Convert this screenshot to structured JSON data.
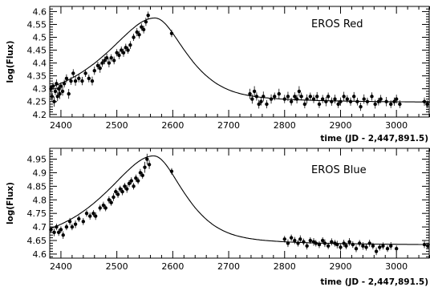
{
  "chart_data": [
    {
      "type": "scatter",
      "title": "EROS Red",
      "xlabel": "time (JD - 2,447,891.5)",
      "ylabel": "log(Flux)",
      "xlim": [
        2380,
        3060
      ],
      "ylim": [
        4.19,
        4.62
      ],
      "x_ticks": [
        2400,
        2500,
        2600,
        2700,
        2800,
        2900,
        3000
      ],
      "x_tick_labels": [
        "2400",
        "2500",
        "2600",
        "2700",
        "2800",
        "2900",
        "3000"
      ],
      "y_ticks": [
        4.2,
        4.25,
        4.3,
        4.35,
        4.4,
        4.45,
        4.5,
        4.55,
        4.6
      ],
      "y_tick_labels": [
        "4.2",
        "4.25",
        "4.3",
        "4.35",
        "4.4",
        "4.45",
        "4.5",
        "4.55",
        "4.6"
      ],
      "model_curve": {
        "peak_time": 2568,
        "peak_value": 4.575,
        "baseline": 4.245,
        "rise_scale": 95,
        "decay_scale": 62,
        "x_start": 2380,
        "x_end": 3060
      },
      "series": [
        {
          "x": [
            2382,
            2384,
            2386,
            2388,
            2390,
            2392,
            2394,
            2396,
            2398,
            2400,
            2403,
            2406,
            2410,
            2414,
            2418,
            2422,
            2426,
            2432,
            2438,
            2444,
            2450,
            2456,
            2460,
            2466,
            2470,
            2474,
            2478,
            2482,
            2486,
            2490,
            2495,
            2500,
            2504,
            2508,
            2512,
            2516,
            2520,
            2524,
            2530,
            2536,
            2540,
            2544,
            2548,
            2552,
            2556,
            2598,
            2738,
            2742,
            2746,
            2750,
            2754,
            2758,
            2762,
            2768,
            2776,
            2782,
            2790,
            2800,
            2806,
            2812,
            2818,
            2822,
            2826,
            2830,
            2836,
            2840,
            2846,
            2852,
            2858,
            2862,
            2868,
            2874,
            2878,
            2884,
            2890,
            2896,
            2900,
            2906,
            2912,
            2918,
            2924,
            2930,
            2936,
            2942,
            2948,
            2956,
            2962,
            2968,
            2972,
            2982,
            2990,
            2996,
            3000,
            3006,
            3050,
            3055
          ],
          "y": [
            4.3,
            4.27,
            4.31,
            4.25,
            4.29,
            4.32,
            4.27,
            4.3,
            4.28,
            4.31,
            4.29,
            4.32,
            4.34,
            4.28,
            4.33,
            4.36,
            4.33,
            4.34,
            4.33,
            4.36,
            4.34,
            4.33,
            4.37,
            4.39,
            4.38,
            4.4,
            4.41,
            4.42,
            4.4,
            4.42,
            4.41,
            4.44,
            4.43,
            4.45,
            4.44,
            4.46,
            4.45,
            4.47,
            4.5,
            4.52,
            4.51,
            4.54,
            4.53,
            4.56,
            4.585,
            4.515,
            4.28,
            4.26,
            4.29,
            4.27,
            4.24,
            4.25,
            4.27,
            4.24,
            4.26,
            4.27,
            4.28,
            4.26,
            4.27,
            4.25,
            4.27,
            4.26,
            4.29,
            4.27,
            4.24,
            4.26,
            4.27,
            4.26,
            4.27,
            4.24,
            4.26,
            4.25,
            4.27,
            4.25,
            4.26,
            4.24,
            4.25,
            4.27,
            4.26,
            4.25,
            4.27,
            4.25,
            4.23,
            4.26,
            4.25,
            4.27,
            4.24,
            4.25,
            4.26,
            4.25,
            4.24,
            4.25,
            4.26,
            4.24,
            4.25,
            4.24
          ],
          "err": [
            0.015,
            0.018,
            0.014,
            0.02,
            0.015,
            0.016,
            0.018,
            0.015,
            0.02,
            0.015,
            0.017,
            0.015,
            0.016,
            0.019,
            0.015,
            0.016,
            0.018,
            0.015,
            0.016,
            0.014,
            0.015,
            0.017,
            0.016,
            0.015,
            0.018,
            0.015,
            0.015,
            0.016,
            0.017,
            0.014,
            0.015,
            0.014,
            0.015,
            0.014,
            0.016,
            0.015,
            0.014,
            0.015,
            0.014,
            0.016,
            0.015,
            0.014,
            0.015,
            0.016,
            0.015,
            0.014,
            0.02,
            0.018,
            0.02,
            0.016,
            0.017,
            0.015,
            0.019,
            0.016,
            0.018,
            0.015,
            0.02,
            0.016,
            0.018,
            0.015,
            0.016,
            0.017,
            0.02,
            0.015,
            0.016,
            0.018,
            0.015,
            0.016,
            0.017,
            0.015,
            0.016,
            0.018,
            0.015,
            0.016,
            0.017,
            0.015,
            0.016,
            0.018,
            0.015,
            0.016,
            0.017,
            0.015,
            0.016,
            0.018,
            0.015,
            0.016,
            0.017,
            0.015,
            0.016,
            0.018,
            0.015,
            0.016,
            0.017,
            0.015,
            0.016,
            0.015
          ]
        }
      ]
    },
    {
      "type": "scatter",
      "title": "EROS Blue",
      "xlabel": "time (JD - 2,447,891.5)",
      "ylabel": "log(Flux)",
      "xlim": [
        2380,
        3060
      ],
      "ylim": [
        4.585,
        4.99
      ],
      "x_ticks": [
        2400,
        2500,
        2600,
        2700,
        2800,
        2900,
        3000
      ],
      "x_tick_labels": [
        "2400",
        "2500",
        "2600",
        "2700",
        "2800",
        "2900",
        "3000"
      ],
      "y_ticks": [
        4.6,
        4.65,
        4.7,
        4.75,
        4.8,
        4.85,
        4.9,
        4.95
      ],
      "y_tick_labels": [
        "4.6",
        "4.65",
        "4.7",
        "4.75",
        "4.8",
        "4.85",
        "4.9",
        "4.95"
      ],
      "model_curve": {
        "peak_time": 2566,
        "peak_value": 4.962,
        "baseline": 4.632,
        "rise_scale": 95,
        "decay_scale": 60,
        "x_start": 2380,
        "x_end": 3060
      },
      "series": [
        {
          "x": [
            2382,
            2388,
            2392,
            2396,
            2400,
            2404,
            2410,
            2416,
            2420,
            2426,
            2432,
            2440,
            2446,
            2452,
            2458,
            2462,
            2470,
            2476,
            2480,
            2486,
            2490,
            2494,
            2498,
            2502,
            2506,
            2510,
            2514,
            2518,
            2522,
            2526,
            2530,
            2534,
            2538,
            2542,
            2546,
            2550,
            2554,
            2558,
            2598,
            2800,
            2806,
            2812,
            2818,
            2824,
            2828,
            2834,
            2840,
            2846,
            2852,
            2856,
            2862,
            2868,
            2872,
            2878,
            2884,
            2890,
            2894,
            2900,
            2906,
            2910,
            2916,
            2922,
            2928,
            2934,
            2940,
            2946,
            2952,
            2958,
            2964,
            2970,
            2976,
            2984,
            2990,
            3000,
            3050,
            3056
          ],
          "y": [
            4.69,
            4.68,
            4.7,
            4.68,
            4.69,
            4.67,
            4.7,
            4.72,
            4.7,
            4.71,
            4.73,
            4.72,
            4.75,
            4.74,
            4.75,
            4.74,
            4.77,
            4.78,
            4.77,
            4.8,
            4.79,
            4.81,
            4.83,
            4.82,
            4.84,
            4.83,
            4.85,
            4.84,
            4.86,
            4.87,
            4.85,
            4.88,
            4.87,
            4.9,
            4.89,
            4.92,
            4.95,
            4.93,
            4.905,
            4.655,
            4.64,
            4.66,
            4.65,
            4.64,
            4.655,
            4.645,
            4.63,
            4.65,
            4.645,
            4.64,
            4.635,
            4.65,
            4.64,
            4.63,
            4.645,
            4.64,
            4.635,
            4.625,
            4.64,
            4.63,
            4.645,
            4.635,
            4.62,
            4.64,
            4.63,
            4.625,
            4.64,
            4.63,
            4.61,
            4.625,
            4.63,
            4.62,
            4.63,
            4.62,
            4.635,
            4.63
          ],
          "err": [
            0.012,
            0.014,
            0.012,
            0.013,
            0.012,
            0.014,
            0.012,
            0.013,
            0.012,
            0.014,
            0.012,
            0.013,
            0.012,
            0.013,
            0.012,
            0.014,
            0.012,
            0.013,
            0.012,
            0.013,
            0.012,
            0.014,
            0.012,
            0.013,
            0.012,
            0.013,
            0.012,
            0.014,
            0.012,
            0.013,
            0.012,
            0.013,
            0.012,
            0.014,
            0.012,
            0.02,
            0.02,
            0.016,
            0.012,
            0.012,
            0.014,
            0.012,
            0.013,
            0.012,
            0.014,
            0.012,
            0.013,
            0.012,
            0.014,
            0.012,
            0.013,
            0.012,
            0.014,
            0.012,
            0.013,
            0.012,
            0.014,
            0.012,
            0.013,
            0.012,
            0.014,
            0.012,
            0.013,
            0.012,
            0.014,
            0.012,
            0.013,
            0.012,
            0.014,
            0.012,
            0.013,
            0.012,
            0.014,
            0.012,
            0.013,
            0.012
          ]
        }
      ]
    }
  ]
}
